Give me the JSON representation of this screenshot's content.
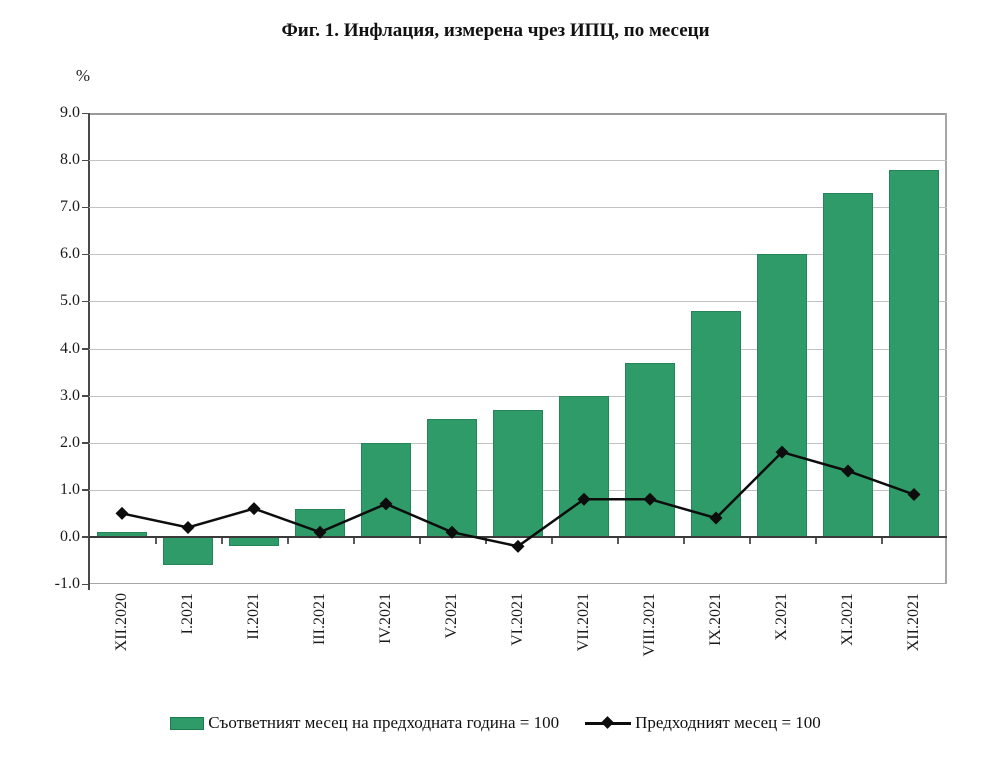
{
  "chart_data": {
    "type": "combo_bar_line",
    "title": "Фиг. 1. Инфлация, измерена чрез ИПЦ, по месеци",
    "xlabel": "",
    "ylabel": "%",
    "categories": [
      "XII.2020",
      "I.2021",
      "II.2021",
      "III.2021",
      "IV.2021",
      "V.2021",
      "VI.2021",
      "VII.2021",
      "VIII.2021",
      "IX.2021",
      "X.2021",
      "XI.2021",
      "XII.2021"
    ],
    "series": [
      {
        "name": "Съответният месец на предходната година = 100",
        "type": "bar",
        "color": "#2E9B68",
        "values": [
          0.1,
          -0.6,
          -0.2,
          0.6,
          2.0,
          2.5,
          2.7,
          3.0,
          3.7,
          4.8,
          6.0,
          7.3,
          7.8
        ]
      },
      {
        "name": "Предходният месец = 100",
        "type": "line",
        "color": "#0d0d0d",
        "marker": "diamond",
        "values": [
          0.5,
          0.2,
          0.6,
          0.1,
          0.7,
          0.1,
          -0.2,
          0.8,
          0.8,
          0.4,
          1.8,
          1.4,
          0.9
        ]
      }
    ],
    "ylim": [
      -1.0,
      9.0
    ],
    "ytick_step": 1.0,
    "ytick_decimals": 1,
    "grid": "horizontal",
    "legend_position": "bottom"
  }
}
